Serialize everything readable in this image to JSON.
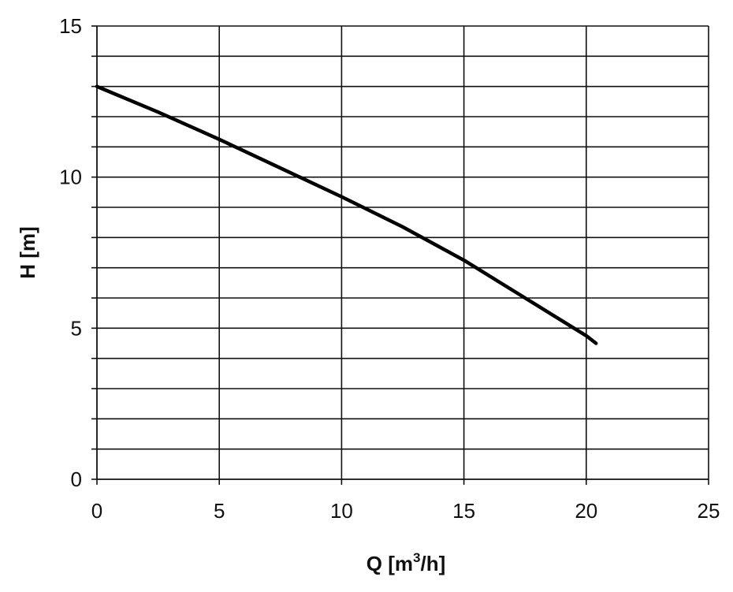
{
  "chart_data": {
    "type": "line",
    "title": "",
    "xlabel": {
      "prefix": "Q [m",
      "superscript": "3",
      "suffix": "/h]"
    },
    "ylabel": "H [m]",
    "xlim": [
      0,
      25
    ],
    "ylim": [
      0,
      15
    ],
    "x_ticks": [
      0,
      5,
      10,
      15,
      20,
      25
    ],
    "y_ticks": [
      0,
      5,
      10,
      15
    ],
    "y_minor_step": 1,
    "x_tick_labels": [
      "0",
      "5",
      "10",
      "15",
      "20",
      "25"
    ],
    "y_tick_labels": [
      "0",
      "5",
      "10",
      "15"
    ],
    "grid": true,
    "legend": "none",
    "series": [
      {
        "color": "#000000",
        "x": [
          0,
          2.5,
          5,
          7.5,
          10,
          12.5,
          15,
          17.5,
          20,
          20.4
        ],
        "y": [
          13.0,
          12.15,
          11.25,
          10.3,
          9.35,
          8.35,
          7.25,
          6.0,
          4.75,
          4.5
        ]
      }
    ]
  }
}
